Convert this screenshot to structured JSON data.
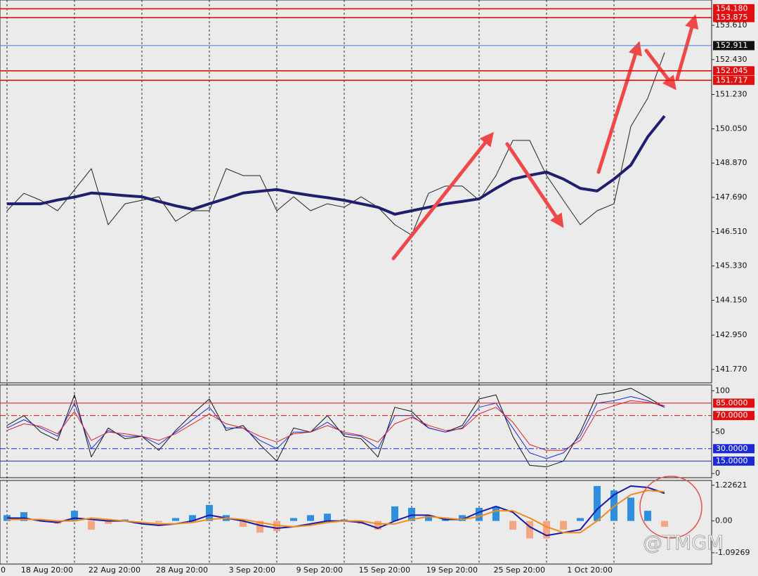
{
  "chart_data": [
    {
      "type": "line",
      "categories": [
        "0",
        null,
        null,
        null,
        "18 Aug 20:00",
        null,
        null,
        null,
        "22 Aug 20:00",
        null,
        null,
        null,
        "28 Aug 20:00",
        null,
        null,
        null,
        "3 Sep 20:00",
        null,
        null,
        null,
        "9 Sep 20:00",
        null,
        null,
        null,
        "15 Sep 20:00",
        null,
        null,
        null,
        "19 Sep 20:00",
        null,
        null,
        null,
        "25 Sep 20:00",
        null,
        null,
        null,
        "1 Oct 20:00",
        null,
        null,
        null
      ],
      "series": [
        {
          "color": "#222222",
          "width": 1,
          "values": [
            147.23,
            147.83,
            147.59,
            147.23,
            147.95,
            148.68,
            146.75,
            147.47,
            147.59,
            147.71,
            146.87,
            147.23,
            147.23,
            148.68,
            148.44,
            148.44,
            147.23,
            147.71,
            147.23,
            147.47,
            147.35,
            147.71,
            147.35,
            146.75,
            146.39,
            147.83,
            148.08,
            148.08,
            147.59,
            148.44,
            149.65,
            149.65,
            148.44,
            147.59,
            146.75,
            147.23,
            147.47,
            150.13,
            151.1,
            152.67
          ]
        },
        {
          "color": "#1f1f6e",
          "width": 4,
          "values": [
            147.47,
            147.47,
            147.47,
            147.6,
            147.7,
            147.84,
            147.8,
            147.75,
            147.71,
            147.55,
            147.4,
            147.28,
            147.47,
            147.65,
            147.84,
            147.9,
            147.96,
            147.85,
            147.76,
            147.68,
            147.59,
            147.47,
            147.35,
            147.11,
            147.23,
            147.35,
            147.47,
            147.55,
            147.64,
            148.0,
            148.32,
            148.45,
            148.56,
            148.32,
            148.0,
            147.91,
            148.32,
            148.8,
            149.77,
            150.49
          ]
        }
      ],
      "ylim": [
        141.31,
        154.48
      ],
      "yticks": [
        {
          "value": 141.77,
          "label": "141.770"
        },
        {
          "value": 142.95,
          "label": "142.950"
        },
        {
          "value": 144.15,
          "label": "144.150"
        },
        {
          "value": 145.33,
          "label": "145.330"
        },
        {
          "value": 146.51,
          "label": "146.510"
        },
        {
          "value": 147.69,
          "label": "147.690"
        },
        {
          "value": 148.87,
          "label": "148.870"
        },
        {
          "value": 150.05,
          "label": "150.050"
        },
        {
          "value": 151.23,
          "label": "151.230"
        },
        {
          "value": 152.43,
          "label": "152.430"
        },
        {
          "value": 153.61,
          "label": "153.610"
        }
      ],
      "levels": [
        {
          "value": 154.18,
          "label": "154.180",
          "color": "#e01010",
          "box": "#e01010"
        },
        {
          "value": 153.875,
          "label": "153.875",
          "color": "#e01010",
          "box": "#e01010"
        },
        {
          "value": 152.911,
          "label": "152.911",
          "color": "#4a78d8",
          "box": "#111111"
        },
        {
          "value": 152.045,
          "label": "152.045",
          "color": "#e01010",
          "box": "#e01010"
        },
        {
          "value": 151.717,
          "label": "151.717",
          "color": "#e01010",
          "box": "#e01010"
        }
      ]
    },
    {
      "type": "line",
      "series": [
        {
          "color": "#111111",
          "width": 1,
          "values": [
            58,
            70,
            50,
            40,
            95,
            20,
            55,
            42,
            45,
            28,
            52,
            72,
            90,
            52,
            58,
            35,
            15,
            55,
            50,
            70,
            45,
            42,
            20,
            80,
            75,
            55,
            50,
            58,
            90,
            95,
            45,
            10,
            8,
            15,
            50,
            95,
            98,
            103,
            92,
            80
          ]
        },
        {
          "color": "#1a2ad8",
          "width": 1,
          "values": [
            55,
            65,
            55,
            45,
            85,
            30,
            52,
            45,
            45,
            35,
            50,
            65,
            80,
            55,
            55,
            40,
            30,
            50,
            50,
            62,
            48,
            45,
            30,
            70,
            70,
            55,
            50,
            55,
            80,
            85,
            55,
            25,
            18,
            25,
            45,
            85,
            88,
            93,
            88,
            80
          ]
        },
        {
          "color": "#e02020",
          "width": 1,
          "values": [
            52,
            60,
            57,
            48,
            75,
            40,
            50,
            48,
            45,
            40,
            48,
            60,
            72,
            60,
            55,
            45,
            38,
            48,
            50,
            58,
            50,
            46,
            38,
            60,
            68,
            58,
            52,
            54,
            72,
            80,
            62,
            35,
            28,
            28,
            40,
            75,
            82,
            88,
            86,
            82
          ]
        }
      ],
      "ylim": [
        -5,
        107
      ],
      "yticks": [
        100,
        50,
        0
      ],
      "levels": [
        {
          "value": 85,
          "label": "85.0000",
          "color": "#e01010",
          "box": "#e01010",
          "style": "solid"
        },
        {
          "value": 70,
          "label": "70.0000",
          "color": "#e01010",
          "box": "#e01010",
          "style": "dashdot"
        },
        {
          "value": 30,
          "label": "30.0000",
          "color": "#1a2ad8",
          "box": "#1a2ad8",
          "style": "dashdot"
        },
        {
          "value": 15,
          "label": "15.0000",
          "color": "#1a2ad8",
          "box": "#1a2ad8",
          "style": "solid"
        }
      ]
    },
    {
      "type": "bar",
      "values": [
        0.2,
        0.3,
        0.05,
        -0.1,
        0.35,
        -0.3,
        -0.1,
        0.05,
        0,
        -0.05,
        0.1,
        0.2,
        0.55,
        0.2,
        -0.2,
        -0.4,
        -0.35,
        0.1,
        0.2,
        0.25,
        0.05,
        -0.1,
        -0.3,
        0.5,
        0.45,
        0.2,
        0.05,
        0.2,
        0.45,
        0.5,
        -0.3,
        -0.6,
        -0.6,
        -0.3,
        0.1,
        1.2,
        1.05,
        0.8,
        0.35,
        -0.2
      ],
      "color": "#2e8fe0",
      "negative_color": "#f4a582",
      "series": [
        {
          "color": "#1a1aa8",
          "width": 2,
          "values": [
            0.1,
            0.1,
            0,
            -0.05,
            0.1,
            0.05,
            0,
            0,
            -0.1,
            -0.15,
            -0.1,
            0,
            0.2,
            0.1,
            0,
            -0.15,
            -0.25,
            -0.2,
            -0.1,
            0,
            0,
            -0.05,
            -0.25,
            0,
            0.2,
            0.2,
            0.05,
            0.05,
            0.3,
            0.5,
            0.3,
            -0.2,
            -0.5,
            -0.4,
            -0.3,
            0.4,
            0.9,
            1.2,
            1.15,
            0.95
          ]
        },
        {
          "color": "#f08c1a",
          "width": 2,
          "values": [
            0.05,
            0.05,
            0.05,
            0,
            0,
            0.1,
            0.05,
            0,
            -0.05,
            -0.1,
            -0.1,
            -0.05,
            0.05,
            0.1,
            0.05,
            -0.05,
            -0.15,
            -0.2,
            -0.15,
            -0.05,
            0,
            0,
            -0.1,
            -0.1,
            0.05,
            0.15,
            0.1,
            0.05,
            0.15,
            0.35,
            0.35,
            0.1,
            -0.2,
            -0.4,
            -0.4,
            0,
            0.5,
            0.9,
            1.05,
            1.0
          ]
        }
      ],
      "ylim": [
        -1.48,
        1.39
      ],
      "yticks": [
        1.22621,
        {
          "value": 0,
          "label": "0.00"
        },
        -1.09269
      ]
    }
  ],
  "watermark": "@TMGM"
}
